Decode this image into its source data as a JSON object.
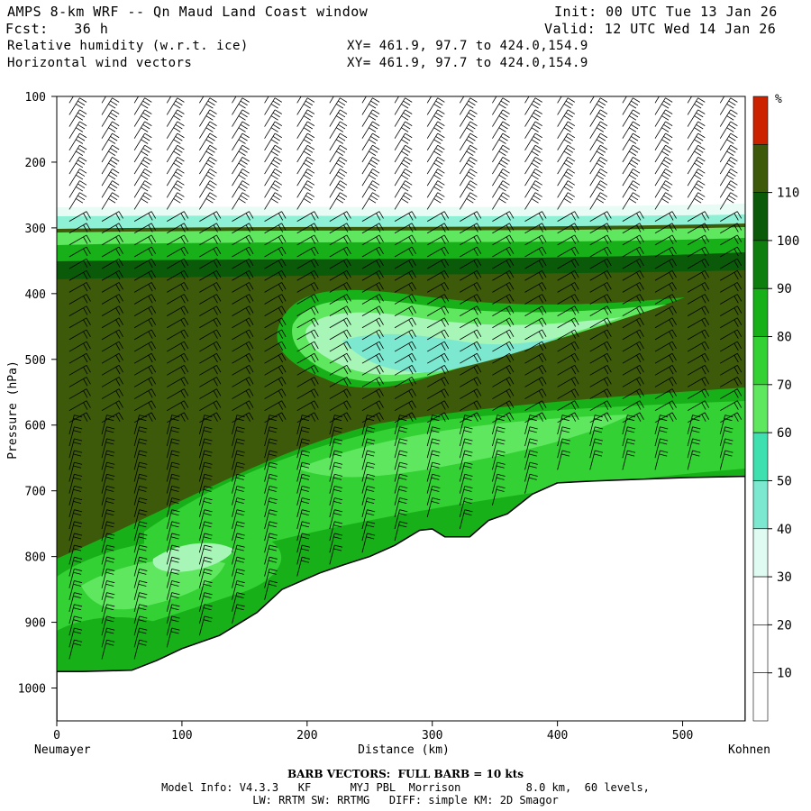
{
  "header": {
    "title": "AMPS 8-km WRF -- Qn Maud Land Coast window",
    "init": "Init: 00 UTC Tue 13 Jan 26",
    "fcst": "Fcst:   36 h",
    "valid": "Valid: 12 UTC Wed 14 Jan 26",
    "field1": "Relative humidity (w.r.t. ice)",
    "field2": "Horizontal wind vectors",
    "xy1": "XY= 461.9, 97.7 to 424.0,154.9",
    "xy2": "XY= 461.9, 97.7 to 424.0,154.9"
  },
  "footer": {
    "barb_note": "BARB VECTORS:  FULL BARB = 10 kts",
    "model_info": "Model Info: V4.3.3   KF      MYJ PBL  Morrison          8.0 km,  60 levels,",
    "model_info2": "LW: RRTM SW: RRTMG   DIFF: simple KM: 2D Smagor"
  },
  "chart_data": {
    "type": "heatmap",
    "title": "Relative humidity (w.r.t. ice) / Horizontal wind vectors",
    "xlabel": "Distance (km)",
    "ylabel": "Pressure (hPa)",
    "x_ticks": [
      0,
      100,
      200,
      300,
      400,
      500
    ],
    "y_ticks": [
      100,
      200,
      300,
      400,
      500,
      600,
      700,
      800,
      900,
      1000
    ],
    "xlim": [
      0,
      550
    ],
    "ylim": [
      100,
      1050
    ],
    "x_end_labels": {
      "left": "Neumayer",
      "right": "Kohnen"
    },
    "colorbar": {
      "unit": "%",
      "levels": [
        10,
        20,
        30,
        40,
        50,
        60,
        70,
        80,
        90,
        100,
        110
      ],
      "colors": [
        "#ffffff",
        "#ffffff",
        "#ffffff",
        "#e0fbf2",
        "#7de8d0",
        "#3fe0b0",
        "#5fe85f",
        "#33d133",
        "#18b018",
        "#0e7f0e",
        "#0a5a0a",
        "#3d5a0a",
        "#cc2200"
      ]
    },
    "terrain": [
      [
        0,
        975
      ],
      [
        20,
        975
      ],
      [
        60,
        973
      ],
      [
        80,
        958
      ],
      [
        100,
        940
      ],
      [
        130,
        920
      ],
      [
        160,
        885
      ],
      [
        180,
        850
      ],
      [
        210,
        825
      ],
      [
        230,
        812
      ],
      [
        250,
        800
      ],
      [
        270,
        783
      ],
      [
        290,
        760
      ],
      [
        300,
        758
      ],
      [
        310,
        770
      ],
      [
        330,
        770
      ],
      [
        345,
        745
      ],
      [
        360,
        735
      ],
      [
        380,
        705
      ],
      [
        400,
        688
      ],
      [
        430,
        685
      ],
      [
        500,
        680
      ],
      [
        550,
        678
      ]
    ]
  }
}
